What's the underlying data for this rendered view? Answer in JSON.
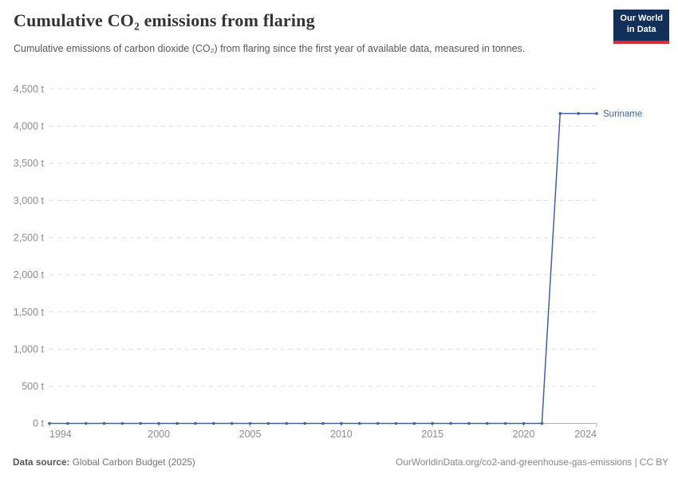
{
  "header": {
    "title": "Cumulative CO₂ emissions from flaring",
    "subtitle": "Cumulative emissions of carbon dioxide (CO₂) from flaring since the first year of available data, measured in tonnes.",
    "logo": {
      "line1": "Our World",
      "line2": "in Data",
      "bg_color": "#12305a",
      "accent_color": "#dd2a31"
    }
  },
  "footer": {
    "data_source_label": "Data source:",
    "data_source_value": "Global Carbon Budget (2025)",
    "license_text": "OurWorldinData.org/co2-and-greenhouse-gas-emissions | CC BY"
  },
  "colors": {
    "series_blue": "#3d64a0",
    "grid_line": "#dddddd",
    "axis_baseline": "#b3b3b3",
    "axis_text": "#8c8c8c",
    "title_text": "#333333",
    "subtitle_text": "#575757"
  },
  "chart_data": {
    "type": "line",
    "title": "Cumulative CO₂ emissions from flaring",
    "xlabel": "",
    "ylabel": "",
    "unit": "t",
    "xlim": [
      1994,
      2024
    ],
    "ylim": [
      0,
      4500
    ],
    "y_tick_step": 500,
    "y_tick_suffix": " t",
    "x_ticks": [
      1994,
      2000,
      2005,
      2010,
      2015,
      2020,
      2024
    ],
    "grid": "horizontal-dashed",
    "legend_position": "end-of-line label",
    "series": [
      {
        "name": "Suriname",
        "color": "#3d64a0",
        "x": [
          1994,
          1995,
          1996,
          1997,
          1998,
          1999,
          2000,
          2001,
          2002,
          2003,
          2004,
          2005,
          2006,
          2007,
          2008,
          2009,
          2010,
          2011,
          2012,
          2013,
          2014,
          2015,
          2016,
          2017,
          2018,
          2019,
          2020,
          2021,
          2022,
          2023,
          2024
        ],
        "values": [
          0,
          0,
          0,
          0,
          0,
          0,
          0,
          0,
          0,
          0,
          0,
          0,
          0,
          0,
          0,
          0,
          0,
          0,
          0,
          0,
          0,
          0,
          0,
          0,
          0,
          0,
          0,
          0,
          4170,
          4170,
          4170
        ]
      }
    ]
  }
}
